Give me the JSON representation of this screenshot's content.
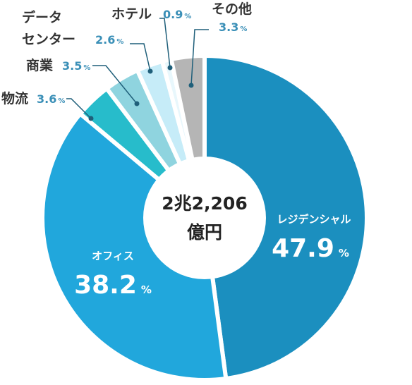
{
  "chart_data": {
    "type": "pie",
    "title": "",
    "center_label": [
      "2兆2,206",
      "億円"
    ],
    "slices": [
      {
        "label": "レジデンシャル",
        "label_lines": [
          "レジデンシャル"
        ],
        "value": 47.9,
        "display": "47.9",
        "color": "#1b8fbf"
      },
      {
        "label": "オフィス",
        "label_lines": [
          "オフィス"
        ],
        "value": 38.2,
        "display": "38.2",
        "color": "#21a7dc"
      },
      {
        "label": "物流",
        "label_lines": [
          "物流"
        ],
        "value": 3.6,
        "display": "3.6",
        "color": "#27bccb"
      },
      {
        "label": "商業",
        "label_lines": [
          "商業"
        ],
        "value": 3.5,
        "display": "3.5",
        "color": "#8fd4df"
      },
      {
        "label": "データセンター",
        "label_lines": [
          "データ",
          "センター"
        ],
        "value": 2.6,
        "display": "2.6",
        "color": "#c6ecf8"
      },
      {
        "label": "ホテル",
        "label_lines": [
          "ホテル"
        ],
        "value": 0.9,
        "display": "0.9",
        "color": "#e8f7fc"
      },
      {
        "label": "その他",
        "label_lines": [
          "その他"
        ],
        "value": 3.3,
        "display": "3.3",
        "color": "#b5b5b5"
      }
    ],
    "unit": "%"
  }
}
